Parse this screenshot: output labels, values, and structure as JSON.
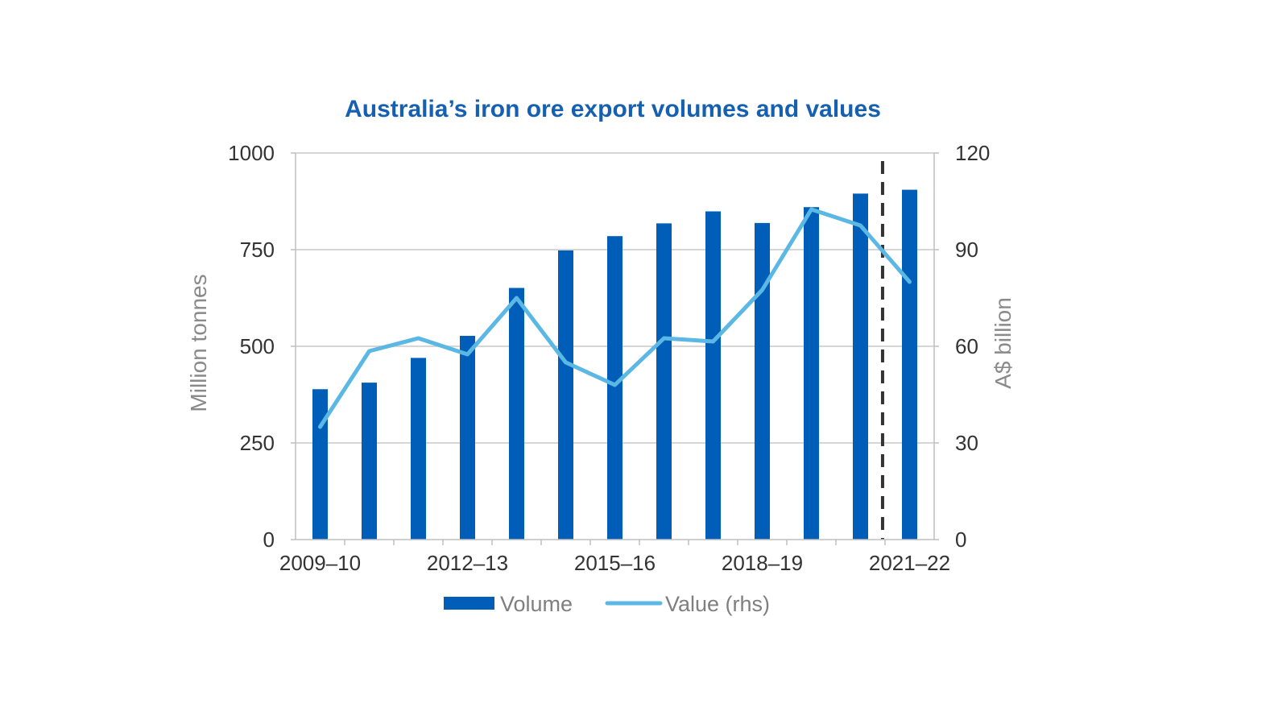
{
  "chart_data": {
    "type": "bar",
    "title": "Australia’s iron ore export volumes and values",
    "ylabel": "Million tonnes",
    "y2label": "A$ billion",
    "ylim": [
      0,
      1000
    ],
    "y2lim": [
      0,
      120
    ],
    "yticks": [
      "0",
      "250",
      "500",
      "750",
      "1000"
    ],
    "y2ticks": [
      "0",
      "30",
      "60",
      "90",
      "120"
    ],
    "x_tick_labels": [
      "2009–10",
      "2012–13",
      "2015–16",
      "2018–19",
      "2021–22"
    ],
    "categories": [
      "2009–10",
      "2010–11",
      "2011–12",
      "2012–13",
      "2013–14",
      "2014–15",
      "2015–16",
      "2016–17",
      "2017–18",
      "2018–19",
      "2019–20",
      "2020–21",
      "2021–22"
    ],
    "series": [
      {
        "name": "Volume",
        "type": "bar",
        "axis": "left",
        "color": "#005eb8",
        "values": [
          389,
          406,
          470,
          527,
          651,
          748,
          785,
          818,
          849,
          819,
          860,
          895,
          905
        ]
      },
      {
        "name": "Value (rhs)",
        "type": "line",
        "axis": "right",
        "color": "#5bb7e3",
        "values": [
          35,
          58.5,
          62.5,
          57.5,
          75,
          55,
          48,
          62.5,
          61.5,
          77.5,
          102.5,
          97.5,
          80
        ]
      }
    ],
    "forecast_divider": {
      "between": [
        "2020–21",
        "2021–22"
      ],
      "style": "dashed"
    },
    "grid": true,
    "legend_position": "bottom-center"
  }
}
